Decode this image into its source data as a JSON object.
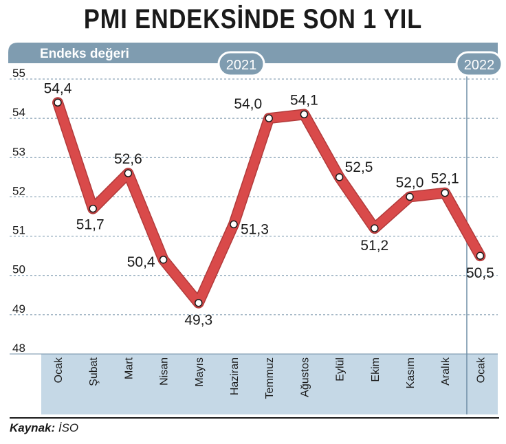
{
  "chart_data": {
    "type": "line",
    "title": "PMI ENDEKSİNDE SON 1 YIL",
    "ylabel": "Endeks değeri",
    "ylim": [
      48,
      55
    ],
    "yticks": [
      "48",
      "49",
      "50",
      "51",
      "52",
      "53",
      "54",
      "55"
    ],
    "categories": [
      "Ocak",
      "Şubat",
      "Mart",
      "Nisan",
      "Mayıs",
      "Haziran",
      "Temmuz",
      "Ağustos",
      "Eylül",
      "Ekim",
      "Kasım",
      "Aralık",
      "Ocak"
    ],
    "values": [
      54.4,
      51.7,
      52.6,
      50.4,
      49.3,
      51.3,
      54.0,
      54.1,
      52.5,
      51.2,
      52.0,
      52.1,
      50.5
    ],
    "value_labels": [
      "54,4",
      "51,7",
      "52,6",
      "50,4",
      "49,3",
      "51,3",
      "54,0",
      "54,1",
      "52,5",
      "51,2",
      "52,0",
      "52,1",
      "50,5"
    ],
    "year_labels": [
      "2021",
      "2022"
    ],
    "grid": true,
    "line_color": "#d94a4a",
    "band_color": "#c5d8e6",
    "header_color": "#7f9cb0"
  },
  "source": {
    "label": "Kaynak:",
    "value": "İSO"
  }
}
